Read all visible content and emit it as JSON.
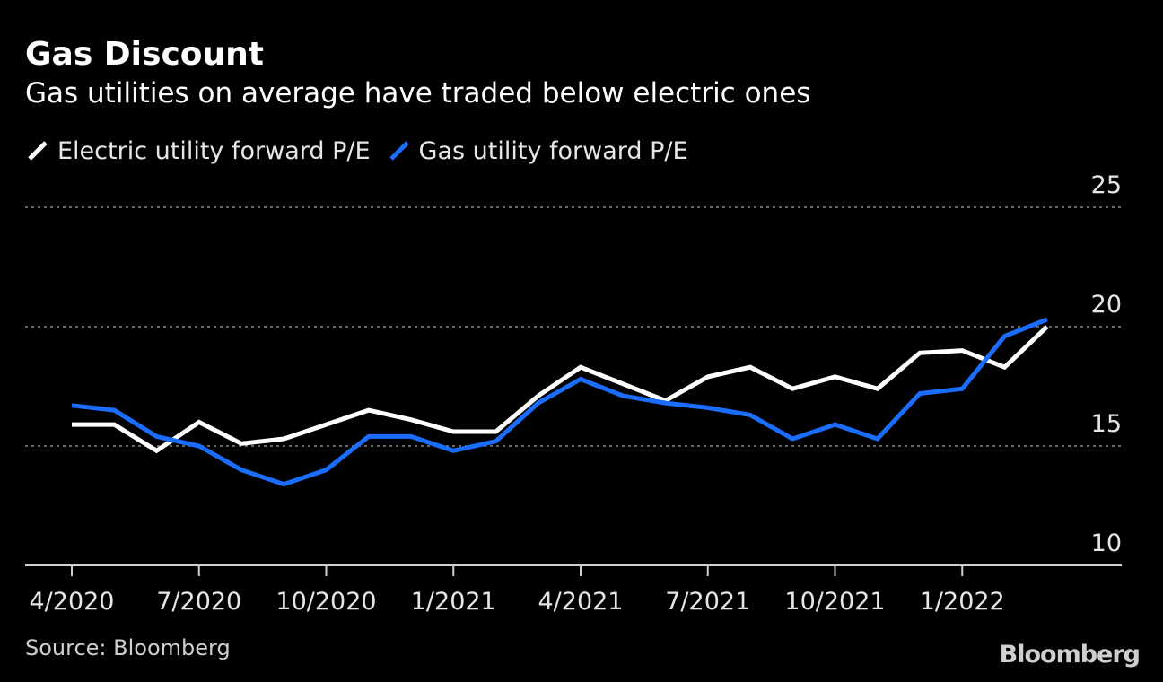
{
  "title": "Gas Discount",
  "subtitle": "Gas utilities on average have traded below electric ones",
  "source": "Source: Bloomberg",
  "logo": "Bloomberg",
  "chart_data": {
    "type": "line",
    "title": "Gas Discount",
    "subtitle": "Gas utilities on average have traded below electric ones",
    "xlabel": "",
    "ylabel": "",
    "ylim": [
      10,
      25
    ],
    "yticks": [
      10,
      15,
      20,
      25
    ],
    "grid": true,
    "legend_position": "top-left",
    "x_tick_labels": [
      "4/2020",
      "7/2020",
      "10/2020",
      "1/2021",
      "4/2021",
      "7/2021",
      "10/2021",
      "1/2022"
    ],
    "x": [
      "4/2020",
      "5/2020",
      "6/2020",
      "7/2020",
      "8/2020",
      "9/2020",
      "10/2020",
      "11/2020",
      "12/2020",
      "1/2021",
      "2/2021",
      "3/2021",
      "4/2021",
      "5/2021",
      "6/2021",
      "7/2021",
      "8/2021",
      "9/2021",
      "10/2021",
      "11/2021",
      "12/2021",
      "1/2022",
      "2/2022",
      "3/2022"
    ],
    "series": [
      {
        "name": "Electric utility forward P/E",
        "color": "#ffffff",
        "values": [
          15.9,
          15.9,
          14.8,
          16.0,
          15.1,
          15.3,
          15.9,
          16.5,
          16.1,
          15.6,
          15.6,
          17.1,
          18.3,
          17.6,
          16.9,
          17.9,
          18.3,
          17.4,
          17.9,
          17.4,
          18.9,
          19.0,
          18.3,
          20.0
        ]
      },
      {
        "name": "Gas utility forward P/E",
        "color": "#1a6dff",
        "values": [
          16.7,
          16.5,
          15.4,
          15.0,
          14.0,
          13.4,
          14.0,
          15.4,
          15.4,
          14.8,
          15.2,
          16.8,
          17.8,
          17.1,
          16.8,
          16.6,
          16.3,
          15.3,
          15.9,
          15.3,
          17.2,
          17.4,
          19.6,
          20.3
        ]
      }
    ]
  }
}
